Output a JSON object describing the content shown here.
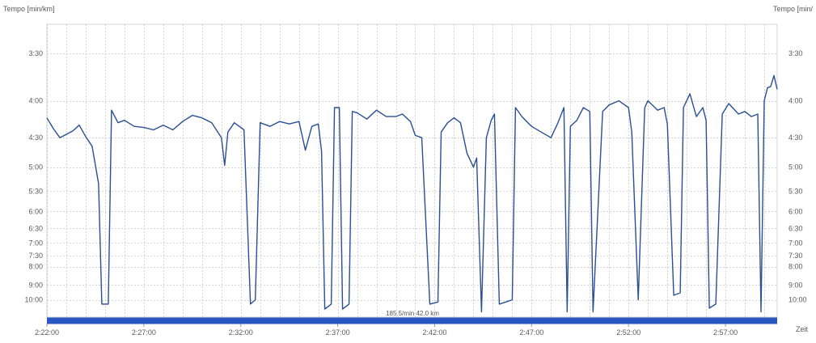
{
  "chart_data": {
    "type": "line",
    "y_label_left": "Tempo [min/km]",
    "y_label_right": "Tempo [min/",
    "x_label": "Zeit",
    "x_ticks": [
      "2:22:00",
      "2:27:00",
      "2:32:00",
      "2:37:00",
      "2:42:00",
      "2:47:00",
      "2:52:00",
      "2:57:00"
    ],
    "x_range": [
      "2:22:00",
      "2:59:40"
    ],
    "y_ticks": [
      "3:30",
      "4:00",
      "4:30",
      "5:00",
      "5:30",
      "6:00",
      "6:30",
      "7:00",
      "7:30",
      "8:00",
      "9:00",
      "10:00"
    ],
    "y_scale": "reciprocal (speed-linear, fastest tempo at top)",
    "grid": true,
    "bar_label": "185.5/min 42.0 km",
    "colors": {
      "line": "#2a4f93",
      "bar": "#2756c0",
      "grid": "#c8c8c8"
    },
    "series": [
      {
        "values": [
          [
            "2:22:00",
            "4:13"
          ],
          [
            "2:22:20",
            "4:22"
          ],
          [
            "2:22:40",
            "4:30"
          ],
          [
            "2:23:00",
            "4:27"
          ],
          [
            "2:23:20",
            "4:24"
          ],
          [
            "2:23:40",
            "4:19"
          ],
          [
            "2:24:00",
            "4:29"
          ],
          [
            "2:24:20",
            "4:38"
          ],
          [
            "2:24:40",
            "5:20"
          ],
          [
            "2:24:50",
            "10:20"
          ],
          [
            "2:25:10",
            "10:20"
          ],
          [
            "2:25:20",
            "4:07"
          ],
          [
            "2:25:40",
            "4:17"
          ],
          [
            "2:26:00",
            "4:15"
          ],
          [
            "2:26:30",
            "4:20"
          ],
          [
            "2:27:00",
            "4:21"
          ],
          [
            "2:27:30",
            "4:23"
          ],
          [
            "2:28:00",
            "4:19"
          ],
          [
            "2:28:30",
            "4:23"
          ],
          [
            "2:29:00",
            "4:16"
          ],
          [
            "2:29:30",
            "4:11"
          ],
          [
            "2:30:00",
            "4:13"
          ],
          [
            "2:30:30",
            "4:17"
          ],
          [
            "2:31:00",
            "4:30"
          ],
          [
            "2:31:10",
            "4:58"
          ],
          [
            "2:31:20",
            "4:25"
          ],
          [
            "2:31:40",
            "4:17"
          ],
          [
            "2:32:10",
            "4:23"
          ],
          [
            "2:32:30",
            "10:20"
          ],
          [
            "2:32:45",
            "10:00"
          ],
          [
            "2:33:00",
            "4:17"
          ],
          [
            "2:33:30",
            "4:20"
          ],
          [
            "2:34:00",
            "4:16"
          ],
          [
            "2:34:30",
            "4:18"
          ],
          [
            "2:35:00",
            "4:16"
          ],
          [
            "2:35:20",
            "4:42"
          ],
          [
            "2:35:40",
            "4:20"
          ],
          [
            "2:36:00",
            "4:18"
          ],
          [
            "2:36:10",
            "4:43"
          ],
          [
            "2:36:20",
            "10:45"
          ],
          [
            "2:36:40",
            "10:20"
          ],
          [
            "2:36:50",
            "4:05"
          ],
          [
            "2:37:05",
            "4:05"
          ],
          [
            "2:37:15",
            "10:45"
          ],
          [
            "2:37:35",
            "10:20"
          ],
          [
            "2:37:45",
            "4:08"
          ],
          [
            "2:38:00",
            "4:09"
          ],
          [
            "2:38:30",
            "4:14"
          ],
          [
            "2:39:00",
            "4:07"
          ],
          [
            "2:39:30",
            "4:12"
          ],
          [
            "2:40:00",
            "4:12"
          ],
          [
            "2:40:20",
            "4:10"
          ],
          [
            "2:40:45",
            "4:16"
          ],
          [
            "2:41:00",
            "4:28"
          ],
          [
            "2:41:20",
            "4:30"
          ],
          [
            "2:41:45",
            "10:20"
          ],
          [
            "2:42:10",
            "10:10"
          ],
          [
            "2:42:20",
            "4:25"
          ],
          [
            "2:42:40",
            "4:17"
          ],
          [
            "2:43:00",
            "4:13"
          ],
          [
            "2:43:20",
            "4:17"
          ],
          [
            "2:43:40",
            "4:45"
          ],
          [
            "2:44:00",
            "5:00"
          ],
          [
            "2:44:10",
            "4:50"
          ],
          [
            "2:44:25",
            "11:00"
          ],
          [
            "2:44:40",
            "4:30"
          ],
          [
            "2:44:55",
            "4:15"
          ],
          [
            "2:45:05",
            "4:10"
          ],
          [
            "2:45:20",
            "10:20"
          ],
          [
            "2:45:40",
            "10:10"
          ],
          [
            "2:46:00",
            "10:00"
          ],
          [
            "2:46:10",
            "4:05"
          ],
          [
            "2:46:30",
            "4:12"
          ],
          [
            "2:47:00",
            "4:20"
          ],
          [
            "2:47:30",
            "4:25"
          ],
          [
            "2:48:00",
            "4:30"
          ],
          [
            "2:48:20",
            "4:18"
          ],
          [
            "2:48:40",
            "4:05"
          ],
          [
            "2:48:50",
            "11:00"
          ],
          [
            "2:49:00",
            "4:20"
          ],
          [
            "2:49:20",
            "4:15"
          ],
          [
            "2:49:40",
            "4:05"
          ],
          [
            "2:50:00",
            "4:08"
          ],
          [
            "2:50:10",
            "11:00"
          ],
          [
            "2:50:40",
            "4:08"
          ],
          [
            "2:51:00",
            "4:03"
          ],
          [
            "2:51:30",
            "4:00"
          ],
          [
            "2:52:00",
            "4:05"
          ],
          [
            "2:52:10",
            "4:25"
          ],
          [
            "2:52:30",
            "10:00"
          ],
          [
            "2:52:50",
            "4:05"
          ],
          [
            "2:53:00",
            "4:00"
          ],
          [
            "2:53:30",
            "4:07"
          ],
          [
            "2:53:50",
            "4:05"
          ],
          [
            "2:54:00",
            "4:18"
          ],
          [
            "2:54:20",
            "9:40"
          ],
          [
            "2:54:40",
            "9:30"
          ],
          [
            "2:54:50",
            "4:05"
          ],
          [
            "2:55:10",
            "3:55"
          ],
          [
            "2:55:30",
            "4:12"
          ],
          [
            "2:55:50",
            "4:05"
          ],
          [
            "2:56:00",
            "4:15"
          ],
          [
            "2:56:10",
            "10:40"
          ],
          [
            "2:56:30",
            "10:20"
          ],
          [
            "2:56:50",
            "4:10"
          ],
          [
            "2:57:10",
            "4:02"
          ],
          [
            "2:57:40",
            "4:10"
          ],
          [
            "2:58:00",
            "4:08"
          ],
          [
            "2:58:20",
            "4:12"
          ],
          [
            "2:58:40",
            "4:10"
          ],
          [
            "2:58:50",
            "11:00"
          ],
          [
            "2:59:00",
            "4:00"
          ],
          [
            "2:59:10",
            "3:51"
          ],
          [
            "2:59:20",
            "3:50"
          ],
          [
            "2:59:30",
            "3:43"
          ],
          [
            "2:59:40",
            "3:52"
          ]
        ]
      }
    ]
  }
}
